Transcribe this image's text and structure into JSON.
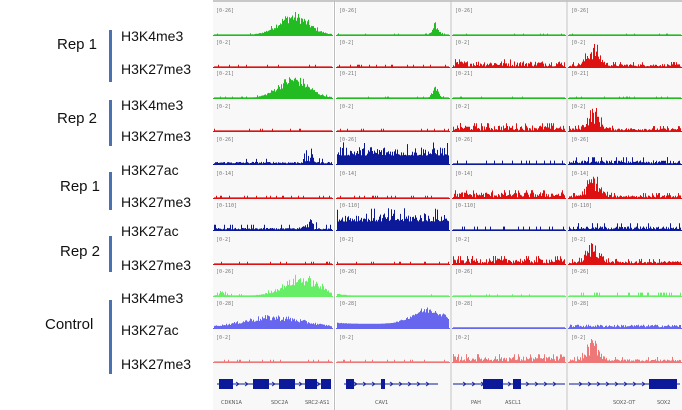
{
  "groups": [
    {
      "label": "Rep 1"
    },
    {
      "label": "Rep 2"
    },
    {
      "label": "Rep 1"
    },
    {
      "label": "Rep 2"
    },
    {
      "label": "Control"
    }
  ],
  "tracks": [
    {
      "label": "H3K4me3",
      "scale": "[0-26]",
      "color": "#22bb22",
      "pattern": "k4_rep"
    },
    {
      "label": "H3K27me3",
      "scale": "[0-2]",
      "color": "#dd1111",
      "pattern": "k27me3"
    },
    {
      "label": "H3K4me3",
      "scale": "[0-21]",
      "color": "#22bb22",
      "pattern": "k4_rep"
    },
    {
      "label": "H3K27me3",
      "scale": "[0-2]",
      "color": "#dd1111",
      "pattern": "k27me3"
    },
    {
      "label": "H3K27ac",
      "scale": "[0-26]",
      "color": "#0c1a99",
      "pattern": "k27ac"
    },
    {
      "label": "H3K27me3",
      "scale": "[0-14]",
      "color": "#dd1111",
      "pattern": "k27me3"
    },
    {
      "label": "H3K27ac",
      "scale": "[0-110]",
      "color": "#0c1a99",
      "pattern": "k27ac"
    },
    {
      "label": "H3K27me3",
      "scale": "[0-2]",
      "color": "#dd1111",
      "pattern": "k27me3"
    },
    {
      "label": "H3K4me3",
      "scale": "[0-26]",
      "color": "#66ee66",
      "pattern": "k4_ctrl"
    },
    {
      "label": "H3K27ac",
      "scale": "[0-28]",
      "color": "#6666ee",
      "pattern": "k27ac_ctrl"
    },
    {
      "label": "H3K27me3",
      "scale": "[0-2]",
      "color": "#ee7777",
      "pattern": "k27me3"
    }
  ],
  "genes": [
    {
      "label": "CDKN1A"
    },
    {
      "label": "SDC2A"
    },
    {
      "label": "SRC2-AS1"
    },
    {
      "label": "CAV1"
    },
    {
      "label": "PAH"
    },
    {
      "label": "ASCL1"
    },
    {
      "label": "SOX2-OT"
    },
    {
      "label": "SOX2"
    }
  ],
  "colors": {
    "gene_track": "#0c1a99",
    "group_bar": "#4a72b0",
    "panel_divider": "#bdbdbd"
  }
}
